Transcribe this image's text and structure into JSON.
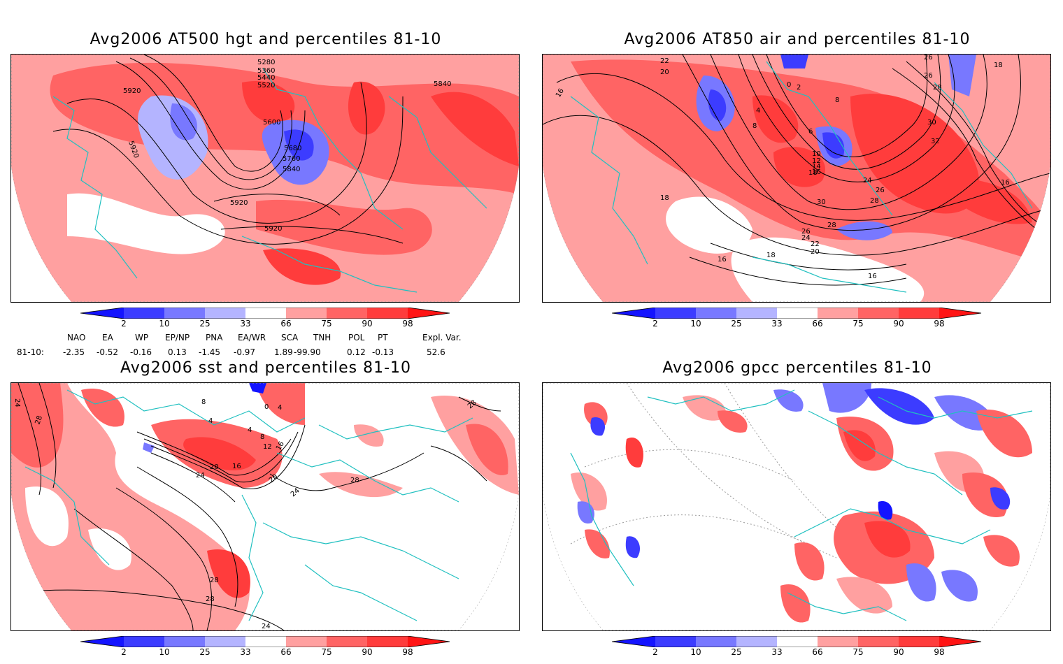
{
  "panels": [
    {
      "title": "Avg2006 AT500 hgt and percentiles 81-10",
      "labels": [
        "5280",
        "5360",
        "5440",
        "5520",
        "5600",
        "5680",
        "5760",
        "5840",
        "5920",
        "5920",
        "5920",
        "5920",
        "5840"
      ]
    },
    {
      "title": "Avg2006 AT850 air and percentiles 81-10",
      "labels": [
        "22",
        "20",
        "16",
        "4",
        "8",
        "6",
        "0",
        "2",
        "8",
        "10",
        "12",
        "14",
        "16",
        "18",
        "18",
        "24",
        "26",
        "28",
        "30",
        "28",
        "26",
        "24",
        "22",
        "20",
        "18",
        "16",
        "16",
        "30",
        "32",
        "28",
        "26",
        "26",
        "18",
        "16"
      ]
    },
    {
      "title": "Avg2006 sst and percentiles 81-10",
      "labels": [
        "24",
        "28",
        "8",
        "4",
        "0",
        "4",
        "4",
        "8",
        "12",
        "16",
        "20",
        "24",
        "16",
        "20",
        "24",
        "28",
        "28",
        "28",
        "28",
        "24"
      ]
    },
    {
      "title": "Avg2006 gpcc percentiles 81-10",
      "labels": []
    }
  ],
  "colorbar": {
    "ticks": [
      "2",
      "10",
      "25",
      "33",
      "66",
      "75",
      "90",
      "98"
    ],
    "colors": {
      "below2": "#1414ff",
      "b2_10": "#3c3cff",
      "b10_25": "#7878ff",
      "b25_33": "#b4b4ff",
      "neutral": "#ffffff",
      "a66_75": "#ffa0a0",
      "a75_90": "#ff6464",
      "a90_98": "#ff3c3c",
      "above98": "#ff1414"
    }
  },
  "indices": {
    "headers": [
      "NAO",
      "EA",
      "WP",
      "EP/NP",
      "PNA",
      "EA/WR",
      "SCA",
      "TNH",
      "POL",
      "PT",
      "Expl. Var."
    ],
    "row_label": "81-10:",
    "values": [
      "-2.35",
      "-0.52",
      "-0.16",
      "0.13",
      "-1.45",
      "-0.97",
      "1.89",
      "-99.90",
      "0.12",
      "-0.13",
      "52.6"
    ]
  },
  "colors": {
    "coast": "#20c0c0",
    "contour": "#000000",
    "grid": "#9a9a9a"
  }
}
